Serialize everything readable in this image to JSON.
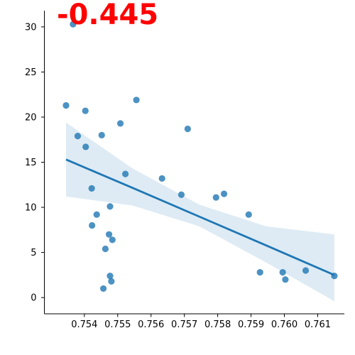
{
  "chart_data": {
    "type": "scatter",
    "annotation": "-0.445",
    "annotation_color": "#ff0000",
    "point_color": "#1f77b4",
    "line_color": "#1f77b4",
    "band_color": "#1f77b4",
    "grid": false,
    "xlim": [
      0.7528,
      0.7618
    ],
    "ylim": [
      -1.8,
      31.8
    ],
    "x_ticks": [
      0.754,
      0.755,
      0.756,
      0.757,
      0.758,
      0.759,
      0.76,
      0.761
    ],
    "x_tick_labels": [
      "0.754",
      "0.755",
      "0.756",
      "0.757",
      "0.758",
      "0.759",
      "0.760",
      "0.761"
    ],
    "y_ticks": [
      0,
      5,
      10,
      15,
      20,
      25,
      30
    ],
    "y_tick_labels": [
      "0",
      "5",
      "10",
      "15",
      "20",
      "25",
      "30"
    ],
    "points": [
      {
        "x": 0.75345,
        "y": 21.3
      },
      {
        "x": 0.75366,
        "y": 30.3
      },
      {
        "x": 0.7538,
        "y": 17.9
      },
      {
        "x": 0.75403,
        "y": 20.7
      },
      {
        "x": 0.75404,
        "y": 16.7
      },
      {
        "x": 0.75422,
        "y": 12.1
      },
      {
        "x": 0.75423,
        "y": 8.0
      },
      {
        "x": 0.75437,
        "y": 9.2
      },
      {
        "x": 0.75452,
        "y": 18.0
      },
      {
        "x": 0.75457,
        "y": 1.0
      },
      {
        "x": 0.75463,
        "y": 5.4
      },
      {
        "x": 0.75474,
        "y": 7.0
      },
      {
        "x": 0.75477,
        "y": 10.1
      },
      {
        "x": 0.75477,
        "y": 2.4
      },
      {
        "x": 0.75481,
        "y": 1.8
      },
      {
        "x": 0.75484,
        "y": 6.4
      },
      {
        "x": 0.75508,
        "y": 19.3
      },
      {
        "x": 0.75523,
        "y": 13.7
      },
      {
        "x": 0.75556,
        "y": 21.9
      },
      {
        "x": 0.75633,
        "y": 13.2
      },
      {
        "x": 0.75691,
        "y": 11.4
      },
      {
        "x": 0.7571,
        "y": 18.7
      },
      {
        "x": 0.75795,
        "y": 11.1
      },
      {
        "x": 0.75819,
        "y": 11.5
      },
      {
        "x": 0.75893,
        "y": 9.2
      },
      {
        "x": 0.75927,
        "y": 2.8
      },
      {
        "x": 0.75995,
        "y": 2.8
      },
      {
        "x": 0.76003,
        "y": 2.0
      },
      {
        "x": 0.76064,
        "y": 3.0
      },
      {
        "x": 0.7615,
        "y": 2.4
      }
    ],
    "regression": {
      "x": [
        0.75345,
        0.75545,
        0.75745,
        0.75945,
        0.7615
      ],
      "y": [
        15.3,
        12.15,
        8.97,
        5.79,
        2.5
      ],
      "ci_lower": [
        11.2,
        10.2,
        7.9,
        3.9,
        -0.4
      ],
      "ci_upper": [
        19.4,
        14.3,
        10.3,
        7.9,
        7.0
      ]
    }
  }
}
